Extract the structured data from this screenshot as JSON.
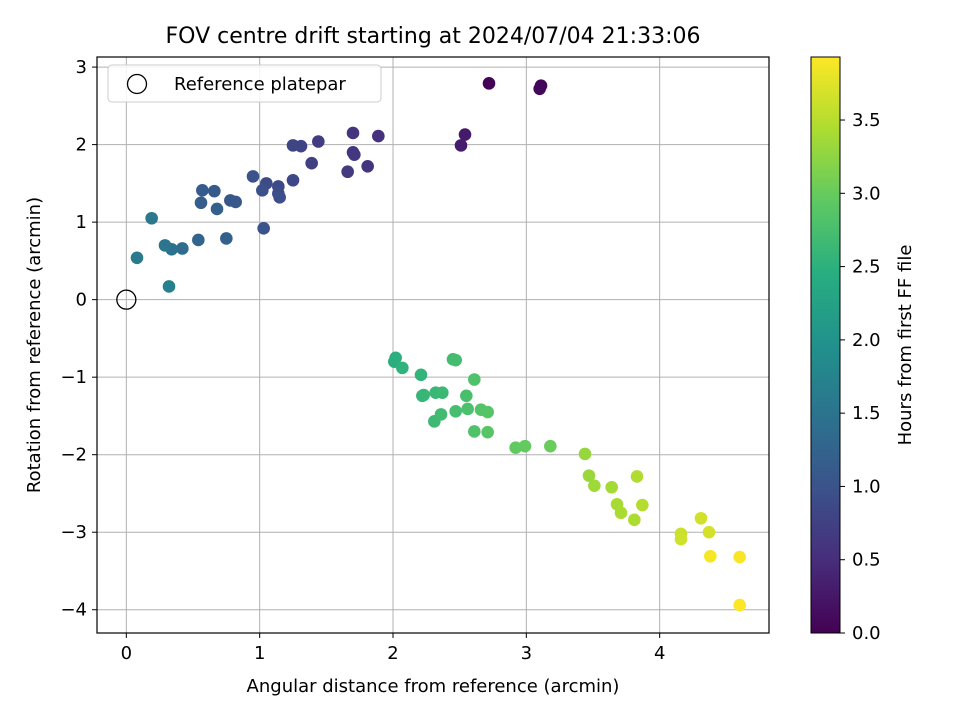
{
  "chart_data": {
    "type": "scatter",
    "title": "FOV centre drift starting at 2024/07/04 21:33:06",
    "xlabel": "Angular distance from reference (arcmin)",
    "ylabel": "Rotation from reference (arcmin)",
    "xlim": [
      -0.22,
      4.82
    ],
    "ylim": [
      -4.3,
      3.13
    ],
    "xticks": [
      0,
      1,
      2,
      3,
      4
    ],
    "yticks": [
      -4,
      -3,
      -2,
      -1,
      0,
      1,
      2,
      3
    ],
    "grid": true,
    "legend": {
      "position": "top-left",
      "entries": [
        {
          "label": "Reference platepar",
          "marker": "open-circle"
        }
      ]
    },
    "reference_point": {
      "x": 0,
      "y": 0,
      "label": "Reference platepar"
    },
    "colorbar": {
      "label": "Hours from first FF file",
      "colormap": "viridis",
      "range": [
        0.0,
        3.93
      ],
      "ticks": [
        0.0,
        0.5,
        1.0,
        1.5,
        2.0,
        2.5,
        3.0,
        3.5
      ],
      "tick_labels": [
        "0.0",
        "0.5",
        "1.0",
        "1.5",
        "2.0",
        "2.5",
        "3.0",
        "3.5"
      ]
    },
    "points": [
      {
        "x": 2.72,
        "y": 2.79,
        "c": 0.02
      },
      {
        "x": 3.11,
        "y": 2.76,
        "c": 0.06
      },
      {
        "x": 3.1,
        "y": 2.72,
        "c": 0.08
      },
      {
        "x": 2.54,
        "y": 2.13,
        "c": 0.28
      },
      {
        "x": 2.51,
        "y": 1.99,
        "c": 0.3
      },
      {
        "x": 1.89,
        "y": 2.11,
        "c": 0.55
      },
      {
        "x": 1.7,
        "y": 2.15,
        "c": 0.58
      },
      {
        "x": 1.7,
        "y": 1.9,
        "c": 0.62
      },
      {
        "x": 1.71,
        "y": 1.87,
        "c": 0.64
      },
      {
        "x": 1.81,
        "y": 1.72,
        "c": 0.6
      },
      {
        "x": 1.66,
        "y": 1.65,
        "c": 0.66
      },
      {
        "x": 1.44,
        "y": 2.04,
        "c": 0.7
      },
      {
        "x": 1.39,
        "y": 1.76,
        "c": 0.75
      },
      {
        "x": 1.31,
        "y": 1.98,
        "c": 0.78
      },
      {
        "x": 1.25,
        "y": 1.99,
        "c": 0.8
      },
      {
        "x": 1.25,
        "y": 1.54,
        "c": 0.85
      },
      {
        "x": 1.14,
        "y": 1.46,
        "c": 0.88
      },
      {
        "x": 1.14,
        "y": 1.37,
        "c": 0.92
      },
      {
        "x": 1.15,
        "y": 1.32,
        "c": 0.94
      },
      {
        "x": 1.05,
        "y": 1.5,
        "c": 0.9
      },
      {
        "x": 1.02,
        "y": 1.41,
        "c": 0.96
      },
      {
        "x": 0.95,
        "y": 1.59,
        "c": 0.98
      },
      {
        "x": 1.03,
        "y": 0.92,
        "c": 1.0
      },
      {
        "x": 0.78,
        "y": 1.28,
        "c": 1.05
      },
      {
        "x": 0.82,
        "y": 1.26,
        "c": 1.07
      },
      {
        "x": 0.66,
        "y": 1.4,
        "c": 1.1
      },
      {
        "x": 0.57,
        "y": 1.41,
        "c": 1.12
      },
      {
        "x": 0.56,
        "y": 1.25,
        "c": 1.15
      },
      {
        "x": 0.68,
        "y": 1.17,
        "c": 1.18
      },
      {
        "x": 0.75,
        "y": 0.79,
        "c": 1.22
      },
      {
        "x": 0.54,
        "y": 0.77,
        "c": 1.28
      },
      {
        "x": 0.42,
        "y": 0.66,
        "c": 1.38
      },
      {
        "x": 0.34,
        "y": 0.65,
        "c": 1.48
      },
      {
        "x": 0.29,
        "y": 0.7,
        "c": 1.52
      },
      {
        "x": 0.19,
        "y": 1.05,
        "c": 1.55
      },
      {
        "x": 0.08,
        "y": 0.54,
        "c": 1.6
      },
      {
        "x": 0.32,
        "y": 0.17,
        "c": 1.7
      },
      {
        "x": 2.01,
        "y": -0.8,
        "c": 2.45
      },
      {
        "x": 2.02,
        "y": -0.75,
        "c": 2.48
      },
      {
        "x": 2.07,
        "y": -0.88,
        "c": 2.52
      },
      {
        "x": 2.21,
        "y": -0.97,
        "c": 2.56
      },
      {
        "x": 2.22,
        "y": -1.24,
        "c": 2.58
      },
      {
        "x": 2.23,
        "y": -1.23,
        "c": 2.6
      },
      {
        "x": 2.32,
        "y": -1.2,
        "c": 2.62
      },
      {
        "x": 2.37,
        "y": -1.2,
        "c": 2.64
      },
      {
        "x": 2.31,
        "y": -1.57,
        "c": 2.66
      },
      {
        "x": 2.36,
        "y": -1.48,
        "c": 2.68
      },
      {
        "x": 2.45,
        "y": -0.77,
        "c": 2.7
      },
      {
        "x": 2.47,
        "y": -0.78,
        "c": 2.72
      },
      {
        "x": 2.47,
        "y": -1.44,
        "c": 2.74
      },
      {
        "x": 2.55,
        "y": -1.24,
        "c": 2.76
      },
      {
        "x": 2.56,
        "y": -1.41,
        "c": 2.78
      },
      {
        "x": 2.61,
        "y": -1.03,
        "c": 2.8
      },
      {
        "x": 2.61,
        "y": -1.7,
        "c": 2.82
      },
      {
        "x": 2.66,
        "y": -1.42,
        "c": 2.84
      },
      {
        "x": 2.71,
        "y": -1.45,
        "c": 2.86
      },
      {
        "x": 2.71,
        "y": -1.71,
        "c": 2.88
      },
      {
        "x": 2.92,
        "y": -1.91,
        "c": 2.96
      },
      {
        "x": 2.99,
        "y": -1.89,
        "c": 2.98
      },
      {
        "x": 3.18,
        "y": -1.89,
        "c": 3.02
      },
      {
        "x": 3.44,
        "y": -1.99,
        "c": 3.3
      },
      {
        "x": 3.47,
        "y": -2.27,
        "c": 3.32
      },
      {
        "x": 3.51,
        "y": -2.4,
        "c": 3.35
      },
      {
        "x": 3.64,
        "y": -2.42,
        "c": 3.38
      },
      {
        "x": 3.68,
        "y": -2.64,
        "c": 3.4
      },
      {
        "x": 3.71,
        "y": -2.75,
        "c": 3.42
      },
      {
        "x": 3.81,
        "y": -2.84,
        "c": 3.44
      },
      {
        "x": 3.83,
        "y": -2.28,
        "c": 3.46
      },
      {
        "x": 3.87,
        "y": -2.65,
        "c": 3.48
      },
      {
        "x": 4.16,
        "y": -3.02,
        "c": 3.62
      },
      {
        "x": 4.16,
        "y": -3.09,
        "c": 3.64
      },
      {
        "x": 4.31,
        "y": -2.82,
        "c": 3.66
      },
      {
        "x": 4.37,
        "y": -3.0,
        "c": 3.68
      },
      {
        "x": 4.38,
        "y": -3.31,
        "c": 3.88
      },
      {
        "x": 4.6,
        "y": -3.32,
        "c": 3.9
      },
      {
        "x": 4.6,
        "y": -3.94,
        "c": 3.92
      }
    ]
  }
}
